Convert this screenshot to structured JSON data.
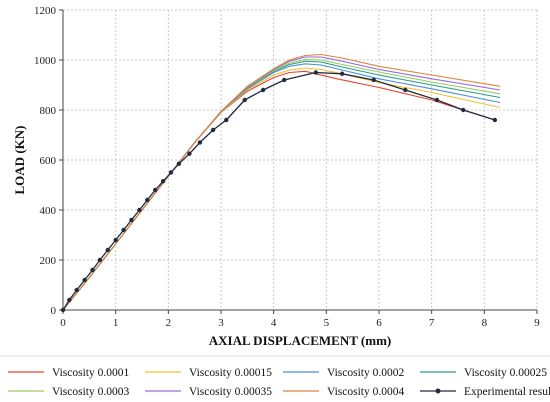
{
  "chart_data": {
    "type": "line",
    "title": "",
    "xlabel": "AXIAL DISPLACEMENT (mm)",
    "ylabel": "LOAD (KN)",
    "xlim": [
      0,
      9
    ],
    "ylim": [
      0,
      1200
    ],
    "xticks": [
      "0",
      "1",
      "2",
      "3",
      "4",
      "5",
      "6",
      "7",
      "8",
      "9"
    ],
    "yticks": [
      "0",
      "200",
      "400",
      "600",
      "800",
      "1000",
      "1200"
    ],
    "grid": true,
    "legend_position": "bottom",
    "series": [
      {
        "name": "Viscosity 0.0001",
        "color": "#e8412f",
        "marker": "none",
        "x": [
          0,
          0.5,
          1,
          1.5,
          2,
          2.5,
          3,
          3.5,
          4,
          4.3,
          4.6,
          4.8,
          5.2,
          6,
          7,
          8.2
        ],
        "y": [
          0,
          130,
          265,
          400,
          535,
          670,
          790,
          875,
          930,
          950,
          955,
          945,
          925,
          890,
          840,
          760
        ]
      },
      {
        "name": "Viscosity 0.00015",
        "color": "#f2c12e",
        "marker": "none",
        "x": [
          0,
          0.5,
          1,
          1.5,
          2,
          2.5,
          3,
          3.5,
          4,
          4.3,
          4.6,
          4.9,
          5.3,
          6,
          7,
          8.3
        ],
        "y": [
          0,
          130,
          265,
          400,
          535,
          670,
          790,
          880,
          940,
          960,
          968,
          962,
          945,
          910,
          870,
          810
        ]
      },
      {
        "name": "Viscosity 0.0002",
        "color": "#4a8fd8",
        "marker": "none",
        "x": [
          0,
          0.5,
          1,
          1.5,
          2,
          2.5,
          3,
          3.5,
          4,
          4.3,
          4.6,
          4.9,
          5.3,
          6,
          7,
          8.3
        ],
        "y": [
          0,
          130,
          265,
          400,
          535,
          670,
          792,
          885,
          950,
          975,
          985,
          980,
          960,
          925,
          885,
          830
        ]
      },
      {
        "name": "Viscosity 0.00025",
        "color": "#2e9b8a",
        "marker": "none",
        "x": [
          0,
          0.5,
          1,
          1.5,
          2,
          2.5,
          3,
          3.5,
          4,
          4.3,
          4.6,
          4.9,
          5.3,
          6,
          7,
          8.3
        ],
        "y": [
          0,
          130,
          265,
          400,
          535,
          670,
          793,
          888,
          955,
          982,
          995,
          992,
          972,
          940,
          900,
          850
        ]
      },
      {
        "name": "Viscosity 0.0003",
        "color": "#93d15a",
        "marker": "none",
        "x": [
          0,
          0.5,
          1,
          1.5,
          2,
          2.5,
          3,
          3.5,
          4,
          4.3,
          4.6,
          4.9,
          5.3,
          6,
          7,
          8.3
        ],
        "y": [
          0,
          130,
          265,
          400,
          535,
          670,
          793,
          890,
          958,
          988,
          1003,
          1000,
          982,
          952,
          912,
          865
        ]
      },
      {
        "name": "Viscosity 0.00035",
        "color": "#9a6bd6",
        "marker": "none",
        "x": [
          0,
          0.5,
          1,
          1.5,
          2,
          2.5,
          3,
          3.5,
          4,
          4.3,
          4.6,
          4.9,
          5.3,
          6,
          7,
          8.3
        ],
        "y": [
          0,
          130,
          265,
          400,
          535,
          670,
          794,
          892,
          962,
          995,
          1012,
          1012,
          995,
          962,
          925,
          880
        ]
      },
      {
        "name": "Viscosity 0.0004",
        "color": "#e0823a",
        "marker": "none",
        "x": [
          0,
          0.5,
          1,
          1.5,
          2,
          2.5,
          3,
          3.5,
          4,
          4.3,
          4.6,
          4.9,
          5.3,
          6,
          7,
          8.3
        ],
        "y": [
          0,
          130,
          265,
          400,
          535,
          670,
          795,
          895,
          965,
          1000,
          1018,
          1022,
          1008,
          975,
          940,
          895
        ]
      },
      {
        "name": "Experimental result",
        "color": "#1f2b3f",
        "marker": "dot",
        "x": [
          0,
          0.12,
          0.26,
          0.41,
          0.56,
          0.7,
          0.85,
          1.0,
          1.15,
          1.3,
          1.45,
          1.6,
          1.75,
          1.9,
          2.05,
          2.2,
          2.4,
          2.6,
          2.85,
          3.1,
          3.45,
          3.8,
          4.2,
          4.8,
          5.3,
          5.9,
          6.5,
          7.1,
          7.6,
          8.2
        ],
        "y": [
          0,
          40,
          80,
          120,
          160,
          200,
          240,
          280,
          320,
          360,
          400,
          440,
          480,
          515,
          550,
          585,
          625,
          670,
          720,
          760,
          840,
          880,
          920,
          950,
          945,
          920,
          880,
          840,
          800,
          760
        ]
      }
    ]
  }
}
